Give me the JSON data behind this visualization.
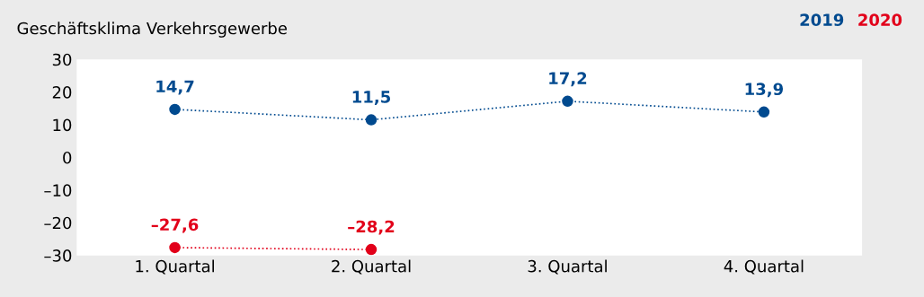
{
  "chart_data": {
    "type": "line",
    "title": "Geschäftsklima Verkehrsgewerbe",
    "categories": [
      "1. Quartal",
      "2. Quartal",
      "3. Quartal",
      "4. Quartal"
    ],
    "series": [
      {
        "name": "2019",
        "color": "#004a8f",
        "values": [
          14.7,
          11.5,
          17.2,
          13.9
        ],
        "value_labels": [
          "14,7",
          "11,5",
          "17,2",
          "13,9"
        ]
      },
      {
        "name": "2020",
        "color": "#e2001a",
        "values": [
          -27.6,
          -28.2,
          null,
          null
        ],
        "value_labels": [
          "–27,6",
          "–28,2",
          null,
          null
        ]
      }
    ],
    "ylim": [
      -30,
      30
    ],
    "yticks": [
      30,
      20,
      10,
      0,
      {
        "value": -10,
        "label": "–10"
      },
      {
        "value": -20,
        "label": "–20"
      },
      {
        "value": -30,
        "label": "–30"
      }
    ],
    "marker": "circle",
    "line_style": "dotted",
    "legend": "top right",
    "grid": false
  }
}
